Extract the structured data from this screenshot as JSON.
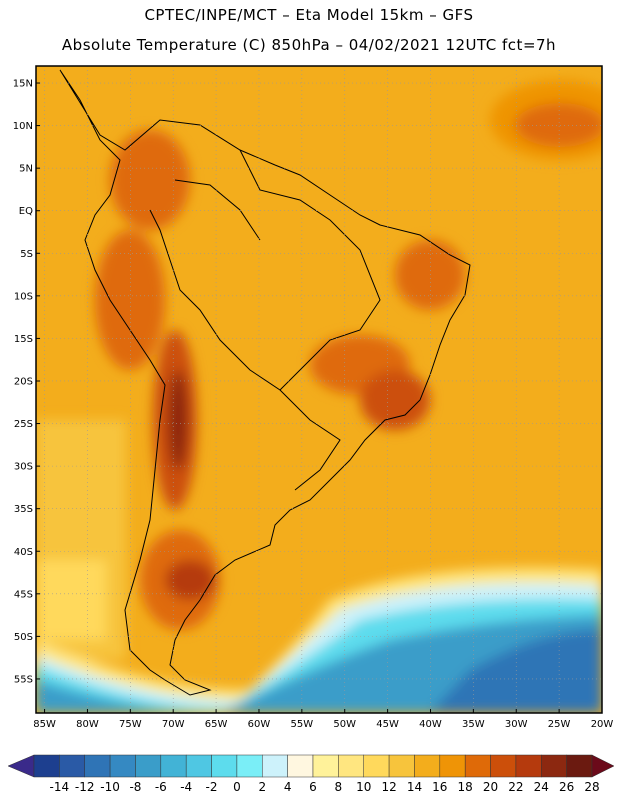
{
  "title_line1": "CPTEC/INPE/MCT –  Eta Model 15km – GFS",
  "title_line2": "Absolute Temperature (C) 850hPa – 04/02/2021 12UTC fct=7h",
  "map": {
    "lon_range": [
      -86,
      -20
    ],
    "lat_range": [
      -59,
      17
    ],
    "lat_labels": [
      "15N",
      "10N",
      "5N",
      "EQ",
      "5S",
      "10S",
      "15S",
      "20S",
      "25S",
      "30S",
      "35S",
      "40S",
      "45S",
      "50S",
      "55S"
    ],
    "lat_values": [
      15,
      10,
      5,
      0,
      -5,
      -10,
      -15,
      -20,
      -25,
      -30,
      -35,
      -40,
      -45,
      -50,
      -55
    ],
    "lon_labels": [
      "85W",
      "80W",
      "75W",
      "70W",
      "65W",
      "60W",
      "55W",
      "50W",
      "45W",
      "40W",
      "35W",
      "30W",
      "25W",
      "20W"
    ],
    "lon_values": [
      -85,
      -80,
      -75,
      -70,
      -65,
      -60,
      -55,
      -50,
      -45,
      -40,
      -35,
      -30,
      -25,
      -20
    ]
  },
  "colorbar": {
    "labels": [
      "-14",
      "-12",
      "-10",
      "-8",
      "-6",
      "-4",
      "-2",
      "0",
      "2",
      "4",
      "6",
      "8",
      "10",
      "12",
      "14",
      "16",
      "18",
      "20",
      "22",
      "24",
      "26",
      "28"
    ],
    "colors": [
      "#1d3f8f",
      "#2a5aa6",
      "#2f74b6",
      "#3589c2",
      "#3a9dc9",
      "#42b3d6",
      "#4fc7e3",
      "#5ddced",
      "#7aeef7",
      "#cdf2fb",
      "#fff7e0",
      "#fff29a",
      "#ffe680",
      "#ffd95c",
      "#f7c43c",
      "#f3ad1c",
      "#ef9406",
      "#df6a08",
      "#cc4f0a",
      "#b53a0d",
      "#8c2810",
      "#6b1a10"
    ],
    "end_low": "#3a2a8a",
    "end_high": "#6b0a1a"
  }
}
